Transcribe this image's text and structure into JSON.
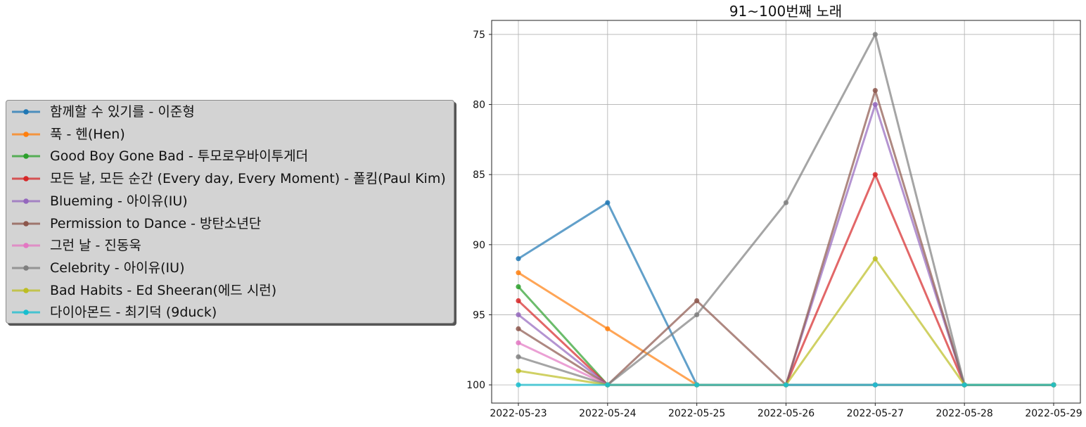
{
  "chart_data": {
    "type": "line",
    "title": "91~100번째 노래",
    "xlabel": "",
    "ylabel": "",
    "x": [
      "2022-05-23",
      "2022-05-24",
      "2022-05-25",
      "2022-05-26",
      "2022-05-27",
      "2022-05-28",
      "2022-05-29"
    ],
    "y_ticks": [
      75,
      80,
      85,
      90,
      95,
      100
    ],
    "ylim": [
      101.3,
      74.0
    ],
    "y_inverted": true,
    "grid": true,
    "legend_position": "left",
    "series": [
      {
        "name": "함께할 수 있기를 - 이준형",
        "color": "#1f77b4",
        "x_indices": [
          0,
          1,
          2,
          3,
          4,
          5,
          6
        ],
        "values": [
          91,
          87,
          100,
          100,
          100,
          100,
          100
        ]
      },
      {
        "name": "푹 - 헨(Hen)",
        "color": "#ff7f0e",
        "x_indices": [
          0,
          1,
          2,
          3,
          4,
          5,
          6
        ],
        "values": [
          92,
          96,
          100,
          100,
          100,
          100,
          100
        ]
      },
      {
        "name": "Good Boy Gone Bad - 투모로우바이투게더",
        "color": "#2ca02c",
        "x_indices": [
          0,
          1,
          2,
          3,
          4,
          5,
          6
        ],
        "values": [
          93,
          100,
          100,
          100,
          100,
          100,
          100
        ]
      },
      {
        "name": "모든 날, 모든 순간 (Every day, Every Moment) - 폴킴(Paul Kim)",
        "color": "#d62728",
        "x_indices": [
          0,
          1,
          2,
          3,
          4,
          5,
          6
        ],
        "values": [
          94,
          100,
          100,
          100,
          85,
          100,
          100
        ]
      },
      {
        "name": "Blueming - 아이유(IU)",
        "color": "#9467bd",
        "x_indices": [
          0,
          1,
          2,
          3,
          4,
          5,
          6
        ],
        "values": [
          95,
          100,
          100,
          100,
          80,
          100,
          100
        ]
      },
      {
        "name": "Permission to Dance - 방탄소년단",
        "color": "#8c564b",
        "x_indices": [
          0,
          1,
          2,
          3,
          4,
          5,
          6
        ],
        "values": [
          96,
          100,
          94,
          100,
          79,
          100,
          100
        ]
      },
      {
        "name": "그런 날 - 진동욱",
        "color": "#e377c2",
        "x_indices": [
          0,
          1,
          2,
          3,
          4,
          5,
          6
        ],
        "values": [
          97,
          100,
          100,
          100,
          100,
          100,
          100
        ]
      },
      {
        "name": "Celebrity - 아이유(IU)",
        "color": "#7f7f7f",
        "x_indices": [
          0,
          1,
          2,
          3,
          4,
          5,
          6
        ],
        "values": [
          98,
          100,
          95,
          87,
          75,
          100,
          100
        ]
      },
      {
        "name": "Bad Habits - Ed Sheeran(에드 시런)",
        "color": "#bcbd22",
        "x_indices": [
          0,
          1,
          2,
          3,
          4,
          5,
          6
        ],
        "values": [
          99,
          100,
          100,
          100,
          91,
          100,
          100
        ]
      },
      {
        "name": "다이아몬드 - 최기덕 (9duck)",
        "color": "#17becf",
        "x_indices": [
          0,
          1,
          2,
          3,
          4,
          5,
          6
        ],
        "values": [
          100,
          100,
          100,
          100,
          100,
          100,
          100
        ]
      }
    ]
  }
}
